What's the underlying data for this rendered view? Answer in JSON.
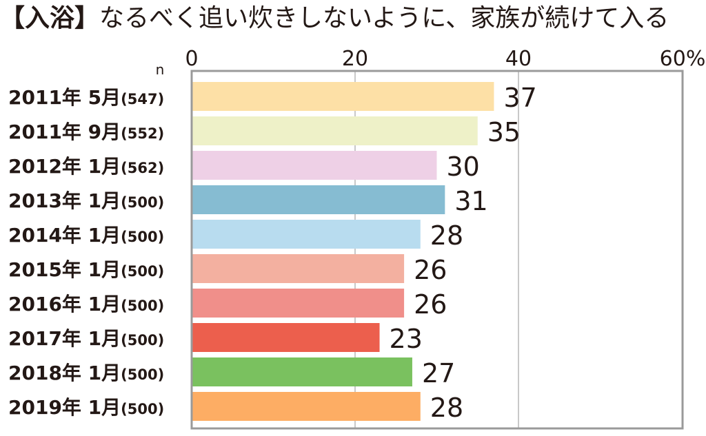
{
  "chart_data": {
    "type": "bar",
    "orientation": "horizontal",
    "title_tag": "【入浴】",
    "title": "なるべく追い炊きしないように、家族が続けて入る",
    "n_label": "n",
    "x_ticks": [
      "0",
      "20",
      "40",
      "60%"
    ],
    "xlim": [
      0,
      60
    ],
    "grid": true,
    "categories": [
      {
        "label": "2011年 5月",
        "n": "(547)"
      },
      {
        "label": "2011年 9月",
        "n": "(552)"
      },
      {
        "label": "2012年 1月",
        "n": "(562)"
      },
      {
        "label": "2013年 1月",
        "n": "(500)"
      },
      {
        "label": "2014年 1月",
        "n": "(500)"
      },
      {
        "label": "2015年 1月",
        "n": "(500)"
      },
      {
        "label": "2016年 1月",
        "n": "(500)"
      },
      {
        "label": "2017年 1月",
        "n": "(500)"
      },
      {
        "label": "2018年 1月",
        "n": "(500)"
      },
      {
        "label": "2019年 1月",
        "n": "(500)"
      }
    ],
    "values": [
      37,
      35,
      30,
      31,
      28,
      26,
      26,
      23,
      27,
      28
    ],
    "value_labels": [
      "37",
      "35",
      "30",
      "31",
      "28",
      "26",
      "26",
      "23",
      "27",
      "28"
    ],
    "colors": [
      "#fde0a6",
      "#eef1c8",
      "#eed0e6",
      "#86bcd2",
      "#b8dcef",
      "#f3b0a0",
      "#f08f8a",
      "#ec5f4d",
      "#7ac15f",
      "#fdad64"
    ]
  }
}
